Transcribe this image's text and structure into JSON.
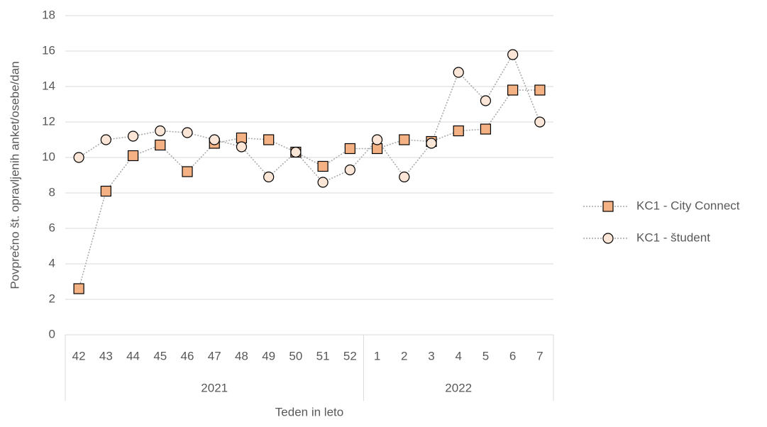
{
  "chart_data": {
    "type": "line",
    "y_label": "Povprečno št. opravljenih anket/osebe/dan",
    "x_label": "Teden in leto",
    "category_groups": [
      {
        "label": "2021",
        "categories": [
          "42",
          "43",
          "44",
          "45",
          "46",
          "47",
          "48",
          "49",
          "50",
          "51",
          "52"
        ]
      },
      {
        "label": "2022",
        "categories": [
          "1",
          "2",
          "3",
          "4",
          "5",
          "6",
          "7"
        ]
      }
    ],
    "series": [
      {
        "name": "KC1 - City Connect",
        "marker": "square",
        "color": "#f4b183",
        "values": [
          2.6,
          8.1,
          10.1,
          10.7,
          9.2,
          10.8,
          11.1,
          11.0,
          10.3,
          9.5,
          10.5,
          10.5,
          11.0,
          10.9,
          11.5,
          11.6,
          13.8,
          13.8
        ]
      },
      {
        "name": "KC1 - študent",
        "marker": "circle",
        "color": "#fbe5d6",
        "values": [
          10.0,
          11.0,
          11.2,
          11.5,
          11.4,
          11.0,
          10.6,
          8.9,
          10.3,
          8.6,
          9.3,
          11.0,
          8.9,
          10.8,
          14.8,
          13.2,
          15.8,
          12.0
        ]
      }
    ],
    "ylim": [
      0,
      18
    ],
    "yticks": [
      0,
      2,
      4,
      6,
      8,
      10,
      12,
      14,
      16,
      18
    ],
    "grid": true,
    "legend": "right"
  }
}
